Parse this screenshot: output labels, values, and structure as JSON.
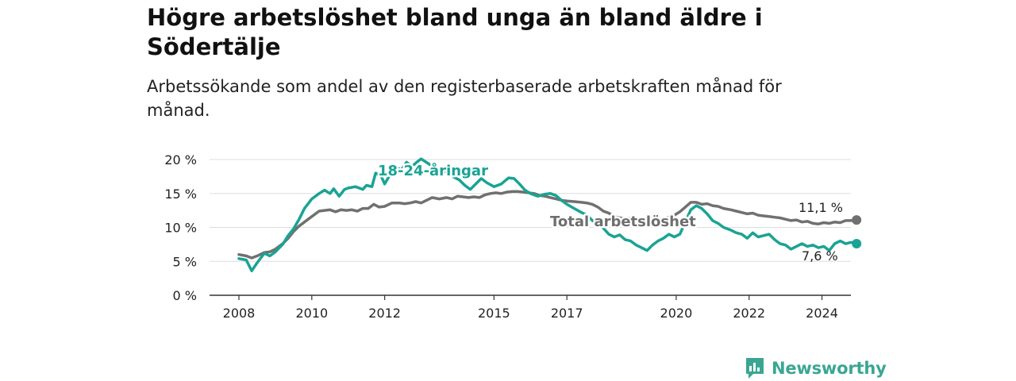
{
  "title": "Högre arbetslöshet bland unga än bland äldre i Södertälje",
  "subtitle": "Arbetssökande som andel av den registerbaserade arbetskraften månad för månad.",
  "brand": {
    "name": "Newsworthy",
    "icon": "newsworthy-logo-icon"
  },
  "colors": {
    "youth": "#1aa394",
    "total": "#707070",
    "grid": "#dddddd"
  },
  "chart_data": {
    "type": "line",
    "ylim": [
      0,
      20
    ],
    "xlim": [
      2008,
      2025.6
    ],
    "grid": true,
    "yticks": [
      {
        "value": 0,
        "label": "0 %"
      },
      {
        "value": 5,
        "label": "5 %"
      },
      {
        "value": 10,
        "label": "10 %"
      },
      {
        "value": 15,
        "label": "15 %"
      },
      {
        "value": 20,
        "label": "20 %"
      }
    ],
    "xticks": [
      {
        "value": 2008,
        "label": "2008"
      },
      {
        "value": 2010,
        "label": "2010"
      },
      {
        "value": 2012,
        "label": "2012"
      },
      {
        "value": 2015,
        "label": "2015"
      },
      {
        "value": 2017,
        "label": "2017"
      },
      {
        "value": 2020,
        "label": "2020"
      },
      {
        "value": 2022,
        "label": "2022"
      },
      {
        "value": 2024,
        "label": "2024"
      }
    ],
    "series": [
      {
        "name": "18-24-åringar",
        "color": "#1aa394",
        "last_label": "7,6 %",
        "points": [
          [
            2008.0,
            5.4
          ],
          [
            2008.2,
            5.2
          ],
          [
            2008.35,
            3.6
          ],
          [
            2008.5,
            4.8
          ],
          [
            2008.7,
            6.2
          ],
          [
            2008.85,
            5.8
          ],
          [
            2009.0,
            6.4
          ],
          [
            2009.2,
            7.5
          ],
          [
            2009.35,
            8.8
          ],
          [
            2009.5,
            9.8
          ],
          [
            2009.65,
            11.2
          ],
          [
            2009.8,
            12.8
          ],
          [
            2010.0,
            14.2
          ],
          [
            2010.2,
            15.0
          ],
          [
            2010.35,
            15.5
          ],
          [
            2010.5,
            15.0
          ],
          [
            2010.6,
            15.7
          ],
          [
            2010.75,
            14.6
          ],
          [
            2010.9,
            15.6
          ],
          [
            2011.0,
            15.8
          ],
          [
            2011.2,
            16.0
          ],
          [
            2011.4,
            15.6
          ],
          [
            2011.5,
            16.2
          ],
          [
            2011.65,
            16.0
          ],
          [
            2011.75,
            18.0
          ],
          [
            2011.9,
            17.6
          ],
          [
            2012.0,
            16.4
          ],
          [
            2012.15,
            17.8
          ],
          [
            2012.3,
            19.0
          ],
          [
            2012.45,
            18.4
          ],
          [
            2012.6,
            19.6
          ],
          [
            2012.75,
            19.0
          ],
          [
            2012.9,
            19.7
          ],
          [
            2013.0,
            20.1
          ],
          [
            2013.2,
            19.4
          ],
          [
            2013.4,
            18.6
          ],
          [
            2013.6,
            18.4
          ],
          [
            2013.75,
            18.0
          ],
          [
            2013.9,
            17.4
          ],
          [
            2014.05,
            17.0
          ],
          [
            2014.2,
            16.2
          ],
          [
            2014.35,
            15.6
          ],
          [
            2014.5,
            16.4
          ],
          [
            2014.65,
            17.2
          ],
          [
            2014.8,
            16.6
          ],
          [
            2015.0,
            16.0
          ],
          [
            2015.2,
            16.4
          ],
          [
            2015.4,
            17.3
          ],
          [
            2015.55,
            17.2
          ],
          [
            2015.7,
            16.4
          ],
          [
            2015.85,
            15.5
          ],
          [
            2016.0,
            15.0
          ],
          [
            2016.2,
            14.6
          ],
          [
            2016.4,
            14.9
          ],
          [
            2016.55,
            15.0
          ],
          [
            2016.7,
            14.7
          ],
          [
            2016.85,
            14.0
          ],
          [
            2017.0,
            13.4
          ],
          [
            2017.2,
            12.8
          ],
          [
            2017.4,
            12.2
          ],
          [
            2017.55,
            11.8
          ],
          [
            2017.7,
            11.0
          ],
          [
            2017.85,
            10.6
          ],
          [
            2018.0,
            9.9
          ],
          [
            2018.15,
            9.0
          ],
          [
            2018.3,
            8.6
          ],
          [
            2018.45,
            8.9
          ],
          [
            2018.6,
            8.2
          ],
          [
            2018.75,
            8.0
          ],
          [
            2018.9,
            7.4
          ],
          [
            2019.05,
            7.0
          ],
          [
            2019.2,
            6.6
          ],
          [
            2019.35,
            7.4
          ],
          [
            2019.5,
            8.0
          ],
          [
            2019.65,
            8.4
          ],
          [
            2019.8,
            9.0
          ],
          [
            2019.95,
            8.6
          ],
          [
            2020.1,
            9.0
          ],
          [
            2020.25,
            10.8
          ],
          [
            2020.4,
            12.6
          ],
          [
            2020.55,
            13.2
          ],
          [
            2020.7,
            12.8
          ],
          [
            2020.85,
            12.0
          ],
          [
            2021.0,
            11.0
          ],
          [
            2021.15,
            10.6
          ],
          [
            2021.3,
            10.0
          ],
          [
            2021.5,
            9.6
          ],
          [
            2021.65,
            9.2
          ],
          [
            2021.8,
            9.0
          ],
          [
            2021.95,
            8.4
          ],
          [
            2022.1,
            9.2
          ],
          [
            2022.25,
            8.6
          ],
          [
            2022.4,
            8.8
          ],
          [
            2022.55,
            9.0
          ],
          [
            2022.7,
            8.2
          ],
          [
            2022.85,
            7.6
          ],
          [
            2023.0,
            7.4
          ],
          [
            2023.15,
            6.8
          ],
          [
            2023.3,
            7.2
          ],
          [
            2023.45,
            7.6
          ],
          [
            2023.6,
            7.2
          ],
          [
            2023.75,
            7.4
          ],
          [
            2023.9,
            7.0
          ],
          [
            2024.05,
            7.2
          ],
          [
            2024.2,
            6.6
          ],
          [
            2024.35,
            7.6
          ],
          [
            2024.5,
            8.0
          ],
          [
            2024.65,
            7.6
          ],
          [
            2024.8,
            7.8
          ],
          [
            2024.95,
            7.6
          ]
        ]
      },
      {
        "name": "Total arbetslöshet",
        "color": "#707070",
        "last_label": "11,1 %",
        "points": [
          [
            2008.0,
            6.0
          ],
          [
            2008.2,
            5.8
          ],
          [
            2008.35,
            5.5
          ],
          [
            2008.5,
            5.8
          ],
          [
            2008.7,
            6.3
          ],
          [
            2008.85,
            6.4
          ],
          [
            2009.0,
            6.8
          ],
          [
            2009.2,
            7.6
          ],
          [
            2009.35,
            8.4
          ],
          [
            2009.5,
            9.4
          ],
          [
            2009.65,
            10.2
          ],
          [
            2009.8,
            10.8
          ],
          [
            2010.0,
            11.6
          ],
          [
            2010.2,
            12.4
          ],
          [
            2010.35,
            12.5
          ],
          [
            2010.5,
            12.6
          ],
          [
            2010.65,
            12.3
          ],
          [
            2010.8,
            12.6
          ],
          [
            2010.95,
            12.5
          ],
          [
            2011.1,
            12.6
          ],
          [
            2011.25,
            12.4
          ],
          [
            2011.4,
            12.8
          ],
          [
            2011.55,
            12.8
          ],
          [
            2011.7,
            13.4
          ],
          [
            2011.85,
            13.0
          ],
          [
            2012.0,
            13.1
          ],
          [
            2012.2,
            13.6
          ],
          [
            2012.4,
            13.6
          ],
          [
            2012.55,
            13.5
          ],
          [
            2012.7,
            13.6
          ],
          [
            2012.85,
            13.8
          ],
          [
            2013.0,
            13.6
          ],
          [
            2013.15,
            14.0
          ],
          [
            2013.3,
            14.4
          ],
          [
            2013.5,
            14.2
          ],
          [
            2013.7,
            14.4
          ],
          [
            2013.85,
            14.2
          ],
          [
            2014.0,
            14.6
          ],
          [
            2014.15,
            14.5
          ],
          [
            2014.3,
            14.4
          ],
          [
            2014.45,
            14.5
          ],
          [
            2014.6,
            14.4
          ],
          [
            2014.75,
            14.8
          ],
          [
            2014.9,
            15.0
          ],
          [
            2015.05,
            15.1
          ],
          [
            2015.2,
            15.0
          ],
          [
            2015.35,
            15.2
          ],
          [
            2015.5,
            15.3
          ],
          [
            2015.65,
            15.3
          ],
          [
            2015.8,
            15.2
          ],
          [
            2015.95,
            15.1
          ],
          [
            2016.1,
            15.0
          ],
          [
            2016.25,
            14.7
          ],
          [
            2016.4,
            14.6
          ],
          [
            2016.55,
            14.4
          ],
          [
            2016.7,
            14.2
          ],
          [
            2016.85,
            14.0
          ],
          [
            2017.0,
            13.9
          ],
          [
            2017.2,
            13.8
          ],
          [
            2017.4,
            13.7
          ],
          [
            2017.55,
            13.6
          ],
          [
            2017.7,
            13.4
          ],
          [
            2017.85,
            13.0
          ],
          [
            2018.0,
            12.4
          ],
          [
            2018.15,
            12.1
          ],
          [
            2018.3,
            11.6
          ],
          [
            2018.45,
            11.4
          ],
          [
            2018.6,
            11.3
          ],
          [
            2018.75,
            11.4
          ],
          [
            2018.9,
            11.2
          ],
          [
            2019.05,
            11.0
          ],
          [
            2019.2,
            11.0
          ],
          [
            2019.35,
            11.1
          ],
          [
            2019.5,
            11.2
          ],
          [
            2019.65,
            11.3
          ],
          [
            2019.8,
            11.5
          ],
          [
            2019.95,
            11.8
          ],
          [
            2020.1,
            12.3
          ],
          [
            2020.25,
            13.0
          ],
          [
            2020.4,
            13.7
          ],
          [
            2020.55,
            13.7
          ],
          [
            2020.7,
            13.4
          ],
          [
            2020.85,
            13.5
          ],
          [
            2021.0,
            13.2
          ],
          [
            2021.15,
            13.1
          ],
          [
            2021.3,
            12.8
          ],
          [
            2021.5,
            12.6
          ],
          [
            2021.65,
            12.4
          ],
          [
            2021.8,
            12.2
          ],
          [
            2021.95,
            12.0
          ],
          [
            2022.1,
            12.1
          ],
          [
            2022.25,
            11.8
          ],
          [
            2022.4,
            11.7
          ],
          [
            2022.55,
            11.6
          ],
          [
            2022.7,
            11.5
          ],
          [
            2022.85,
            11.4
          ],
          [
            2023.0,
            11.2
          ],
          [
            2023.15,
            11.0
          ],
          [
            2023.3,
            11.1
          ],
          [
            2023.45,
            10.8
          ],
          [
            2023.6,
            10.9
          ],
          [
            2023.75,
            10.6
          ],
          [
            2023.9,
            10.5
          ],
          [
            2024.05,
            10.7
          ],
          [
            2024.2,
            10.6
          ],
          [
            2024.35,
            10.8
          ],
          [
            2024.5,
            10.7
          ],
          [
            2024.65,
            11.0
          ],
          [
            2024.8,
            11.0
          ],
          [
            2024.95,
            11.1
          ]
        ]
      }
    ]
  }
}
